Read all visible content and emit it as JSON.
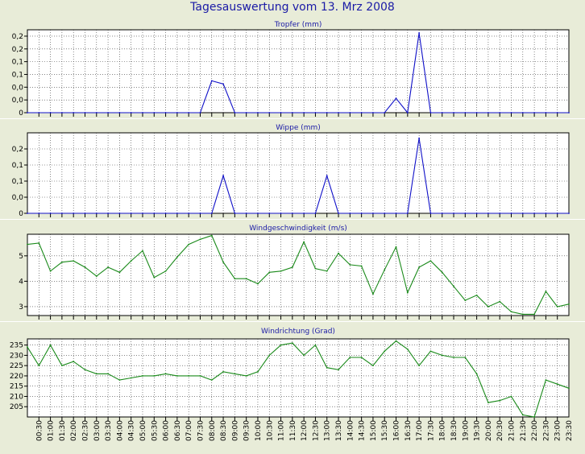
{
  "title": "Tagesauswertung vom 13. Mrz 2008",
  "colors": {
    "title": "#1a1aa6",
    "precip": "#1010c8",
    "wind": "#1a8a1a",
    "background": "#e8ecd8",
    "grid": "#3c3c3c"
  },
  "chart_data": [
    {
      "type": "line",
      "title": "Tropfer (mm)",
      "ylim": [
        0,
        0.26
      ],
      "yticks": [
        0,
        0.04,
        0.08,
        0.12,
        0.16,
        0.2,
        0.24
      ],
      "ytick_labels": [
        "0",
        "0,0",
        "0,0",
        "0,1",
        "0,1",
        "0,2",
        "0,2"
      ],
      "grid": true,
      "series": [
        {
          "values": [
            0,
            0,
            0,
            0,
            0,
            0,
            0,
            0,
            0,
            0,
            0,
            0,
            0,
            0,
            0,
            0,
            0.1,
            0.09,
            0,
            0,
            0,
            0,
            0,
            0,
            0,
            0,
            0,
            0,
            0,
            0,
            0,
            0,
            0.045,
            0,
            0.25,
            0,
            0,
            0,
            0,
            0,
            0,
            0,
            0,
            0,
            0,
            0,
            0,
            0
          ]
        }
      ]
    },
    {
      "type": "line",
      "title": "Wippe (mm)",
      "ylim": [
        0,
        0.3
      ],
      "yticks": [
        0,
        0.06,
        0.12,
        0.18,
        0.24
      ],
      "ytick_labels": [
        "0",
        "0,0",
        "0,1",
        "0,1",
        "0,2"
      ],
      "grid": true,
      "series": [
        {
          "values": [
            0,
            0,
            0,
            0,
            0,
            0,
            0,
            0,
            0,
            0,
            0,
            0,
            0,
            0,
            0,
            0,
            0,
            0.14,
            0,
            0,
            0,
            0,
            0,
            0,
            0,
            0,
            0.14,
            0,
            0,
            0,
            0,
            0,
            0,
            0,
            0.28,
            0,
            0,
            0,
            0,
            0,
            0,
            0,
            0,
            0,
            0,
            0,
            0,
            0
          ]
        }
      ]
    },
    {
      "type": "line",
      "title": "Windgeschwindigkeit (m/s)",
      "ylim": [
        2.65,
        5.85
      ],
      "yticks": [
        3,
        4,
        5
      ],
      "ytick_labels": [
        "3",
        "4",
        "5"
      ],
      "grid": true,
      "series": [
        {
          "values": [
            5.45,
            5.5,
            4.4,
            4.75,
            4.8,
            4.55,
            4.2,
            4.55,
            4.35,
            4.8,
            5.2,
            4.15,
            4.4,
            4.95,
            5.45,
            5.65,
            5.8,
            4.75,
            4.1,
            4.1,
            3.9,
            4.35,
            4.4,
            4.55,
            5.55,
            4.5,
            4.4,
            5.1,
            4.65,
            4.6,
            3.5,
            4.45,
            5.35,
            3.55,
            4.55,
            4.8,
            4.35,
            3.8,
            3.25,
            3.45,
            3.0,
            3.2,
            2.8,
            2.7,
            2.7,
            3.6,
            3.0,
            3.1
          ]
        }
      ]
    },
    {
      "type": "line",
      "title": "Windrichtung (Grad)",
      "ylim": [
        200,
        238
      ],
      "yticks": [
        205,
        210,
        215,
        220,
        225,
        230,
        235
      ],
      "ytick_labels": [
        "205",
        "210",
        "215",
        "220",
        "225",
        "230",
        "235"
      ],
      "grid": true,
      "series": [
        {
          "values": [
            234,
            225,
            235,
            225,
            227,
            223,
            221,
            221,
            218,
            219,
            220,
            220,
            221,
            220,
            220,
            220,
            218,
            222,
            221,
            220,
            222,
            230,
            235,
            236,
            230,
            235,
            224,
            223,
            229,
            229,
            225,
            232,
            237,
            233,
            225,
            232,
            230,
            229,
            229,
            221,
            207,
            208,
            210,
            201,
            200,
            218,
            216,
            214
          ]
        }
      ]
    }
  ],
  "x_axis": {
    "labels": [
      "00:30",
      "01:00",
      "01:30",
      "02:00",
      "02:30",
      "03:00",
      "03:30",
      "04:00",
      "04:30",
      "05:00",
      "05:30",
      "06:00",
      "06:30",
      "07:00",
      "07:30",
      "08:00",
      "08:30",
      "09:00",
      "09:30",
      "10:00",
      "10:30",
      "11:00",
      "11:30",
      "12:00",
      "12:30",
      "13:00",
      "13:30",
      "14:00",
      "14:30",
      "15:00",
      "15:30",
      "16:00",
      "16:30",
      "17:00",
      "17:30",
      "18:00",
      "18:30",
      "19:00",
      "19:30",
      "20:00",
      "20:30",
      "21:00",
      "21:30",
      "22:00",
      "22:30",
      "23:00",
      "23:30"
    ]
  }
}
